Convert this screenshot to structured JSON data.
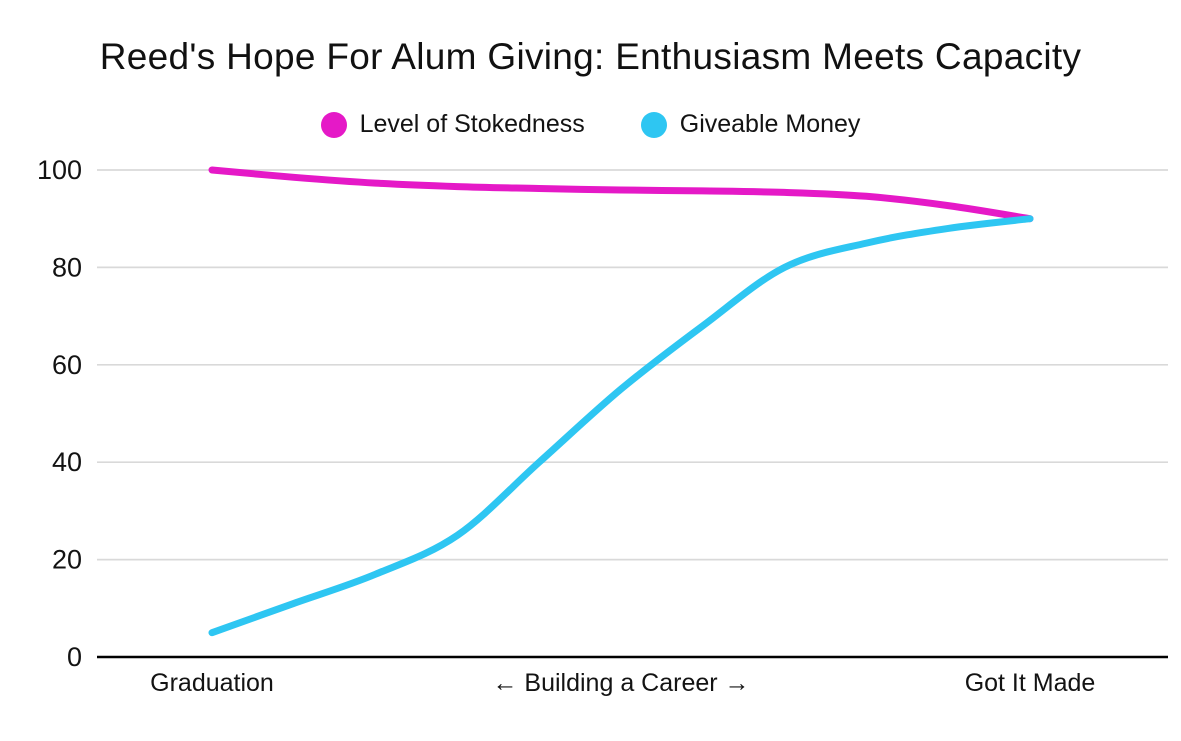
{
  "page": {
    "background": "#ffffff"
  },
  "chart_data": {
    "type": "line",
    "title": "Reed's Hope For Alum Giving: Enthusiasm Meets Capacity",
    "x": [
      0,
      1,
      2,
      3,
      4,
      5,
      6,
      7,
      8,
      9,
      10
    ],
    "series": [
      {
        "name": "Level of Stokedness",
        "color": "#E519C7",
        "values": [
          100,
          98.5,
          97.3,
          96.6,
          96.2,
          95.9,
          95.7,
          95.4,
          94.6,
          92.7,
          90
        ]
      },
      {
        "name": "Giveable Money",
        "color": "#2EC6F2",
        "values": [
          5,
          11,
          17,
          25,
          40,
          55,
          68,
          80,
          85,
          88,
          90
        ]
      }
    ],
    "xticks": [
      {
        "pos": 0,
        "label": "Graduation"
      },
      {
        "pos": 5,
        "label": "← Building a Career →"
      },
      {
        "pos": 10,
        "label": "Got It Made"
      }
    ],
    "yticks": [
      0,
      20,
      40,
      60,
      80,
      100
    ],
    "ylim": [
      0,
      100
    ],
    "grid": true,
    "legend_position": "top-center",
    "colors": {
      "grid": "#d9d9d9",
      "axis": "#000000",
      "text": "#131313",
      "background": "#ffffff"
    }
  }
}
